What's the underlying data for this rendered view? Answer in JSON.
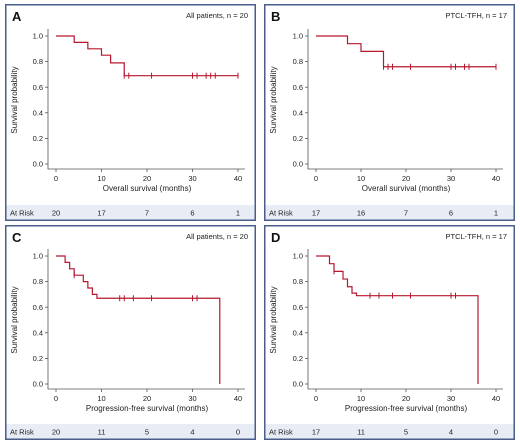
{
  "colors": {
    "curve": "#b5172f",
    "border": "#4a5e8c",
    "risk_bg": "#e8ecf5"
  },
  "chart_data": [
    {
      "type": "line",
      "subtype": "kaplan-meier",
      "letter": "A",
      "title": "All patients, n = 20",
      "xlabel": "Overall survival (months)",
      "ylabel": "Survival probability",
      "xlim": [
        0,
        40
      ],
      "ylim": [
        0,
        1
      ],
      "xticks": [
        "0",
        "10",
        "20",
        "30",
        "40"
      ],
      "yticks": [
        "0.0",
        "0.2",
        "0.4",
        "0.6",
        "0.8",
        "1.0"
      ],
      "grid": false,
      "steps": [
        [
          0,
          1.0
        ],
        [
          4,
          0.95
        ],
        [
          7,
          0.9
        ],
        [
          10,
          0.85
        ],
        [
          12,
          0.79
        ],
        [
          15,
          0.69
        ],
        [
          40,
          0.69
        ]
      ],
      "censored": [
        [
          15,
          0.69
        ],
        [
          16,
          0.69
        ],
        [
          21,
          0.69
        ],
        [
          30,
          0.69
        ],
        [
          31,
          0.69
        ],
        [
          33,
          0.69
        ],
        [
          34,
          0.69
        ],
        [
          35,
          0.69
        ],
        [
          40,
          0.69
        ]
      ],
      "risk_label": "At Risk",
      "at_risk": [
        "20",
        "17",
        "7",
        "6",
        "1"
      ]
    },
    {
      "type": "line",
      "subtype": "kaplan-meier",
      "letter": "B",
      "title": "PTCL-TFH, n = 17",
      "xlabel": "Overall survival (months)",
      "ylabel": "Survival probability",
      "xlim": [
        0,
        40
      ],
      "ylim": [
        0,
        1
      ],
      "xticks": [
        "0",
        "10",
        "20",
        "30",
        "40"
      ],
      "yticks": [
        "0.0",
        "0.2",
        "0.4",
        "0.6",
        "0.8",
        "1.0"
      ],
      "grid": false,
      "steps": [
        [
          0,
          1.0
        ],
        [
          7,
          0.94
        ],
        [
          10,
          0.88
        ],
        [
          15,
          0.76
        ],
        [
          40,
          0.76
        ]
      ],
      "censored": [
        [
          15,
          0.76
        ],
        [
          16,
          0.76
        ],
        [
          17,
          0.76
        ],
        [
          21,
          0.76
        ],
        [
          30,
          0.76
        ],
        [
          31,
          0.76
        ],
        [
          33,
          0.76
        ],
        [
          34,
          0.76
        ],
        [
          40,
          0.76
        ]
      ],
      "risk_label": "At Risk",
      "at_risk": [
        "17",
        "16",
        "7",
        "6",
        "1"
      ]
    },
    {
      "type": "line",
      "subtype": "kaplan-meier",
      "letter": "C",
      "title": "All patients, n = 20",
      "xlabel": "Progression-free survival (months)",
      "ylabel": "Survival probability",
      "xlim": [
        0,
        40
      ],
      "ylim": [
        0,
        1
      ],
      "xticks": [
        "0",
        "10",
        "20",
        "30",
        "40"
      ],
      "yticks": [
        "0.0",
        "0.2",
        "0.4",
        "0.6",
        "0.8",
        "1.0"
      ],
      "grid": false,
      "steps": [
        [
          0,
          1.0
        ],
        [
          2,
          0.95
        ],
        [
          3,
          0.9
        ],
        [
          4,
          0.85
        ],
        [
          6,
          0.8
        ],
        [
          7,
          0.75
        ],
        [
          8,
          0.7
        ],
        [
          9,
          0.67
        ],
        [
          36,
          0.67
        ],
        [
          36,
          0.0
        ]
      ],
      "censored": [
        [
          4,
          0.85
        ],
        [
          14,
          0.67
        ],
        [
          15,
          0.67
        ],
        [
          17,
          0.67
        ],
        [
          21,
          0.67
        ],
        [
          30,
          0.67
        ],
        [
          31,
          0.67
        ]
      ],
      "risk_label": "At Risk",
      "at_risk": [
        "20",
        "11",
        "5",
        "4",
        "0"
      ]
    },
    {
      "type": "line",
      "subtype": "kaplan-meier",
      "letter": "D",
      "title": "PTCL-TFH, n = 17",
      "xlabel": "Progression-free survival (months)",
      "ylabel": "Survival probability",
      "xlim": [
        0,
        40
      ],
      "ylim": [
        0,
        1
      ],
      "xticks": [
        "0",
        "10",
        "20",
        "30",
        "40"
      ],
      "yticks": [
        "0.0",
        "0.2",
        "0.4",
        "0.6",
        "0.8",
        "1.0"
      ],
      "grid": false,
      "steps": [
        [
          0,
          1.0
        ],
        [
          3,
          0.94
        ],
        [
          4,
          0.88
        ],
        [
          6,
          0.82
        ],
        [
          7,
          0.76
        ],
        [
          8,
          0.71
        ],
        [
          9,
          0.69
        ],
        [
          36,
          0.69
        ],
        [
          36,
          0.0
        ]
      ],
      "censored": [
        [
          4,
          0.88
        ],
        [
          12,
          0.69
        ],
        [
          14,
          0.69
        ],
        [
          17,
          0.69
        ],
        [
          21,
          0.69
        ],
        [
          30,
          0.69
        ],
        [
          31,
          0.69
        ]
      ],
      "risk_label": "At Risk",
      "at_risk": [
        "17",
        "11",
        "5",
        "4",
        "0"
      ]
    }
  ]
}
